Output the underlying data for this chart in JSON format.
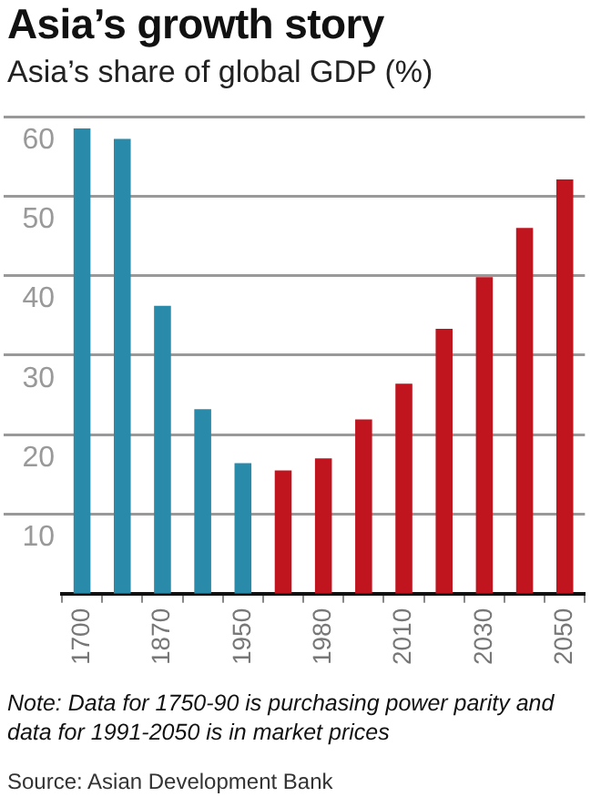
{
  "chart_data": {
    "type": "bar",
    "title": "Asia’s growth story",
    "subtitle": "Asia’s share of global GDP (%)",
    "categories": [
      "1700",
      null,
      "1870",
      null,
      "1950",
      null,
      "1980",
      null,
      "2010",
      null,
      "2030",
      null,
      "2050"
    ],
    "values": [
      58.5,
      57.2,
      36.2,
      23.2,
      16.4,
      15.5,
      17.0,
      21.9,
      26.4,
      33.3,
      39.8,
      46.0,
      52.1
    ],
    "colors": [
      "#2a8aaa",
      "#2a8aaa",
      "#2a8aaa",
      "#2a8aaa",
      "#2a8aaa",
      "#c0141e",
      "#c0141e",
      "#c0141e",
      "#c0141e",
      "#c0141e",
      "#c0141e",
      "#c0141e",
      "#c0141e"
    ],
    "ylim": [
      0,
      60
    ],
    "yticks": [
      10,
      20,
      30,
      40,
      50,
      60
    ],
    "grid": "y",
    "annotations": [
      "Note: Data for 1750-90 is purchasing power parity and data for 1991-2050 is in market prices",
      "Source: Asian Development Bank"
    ]
  }
}
